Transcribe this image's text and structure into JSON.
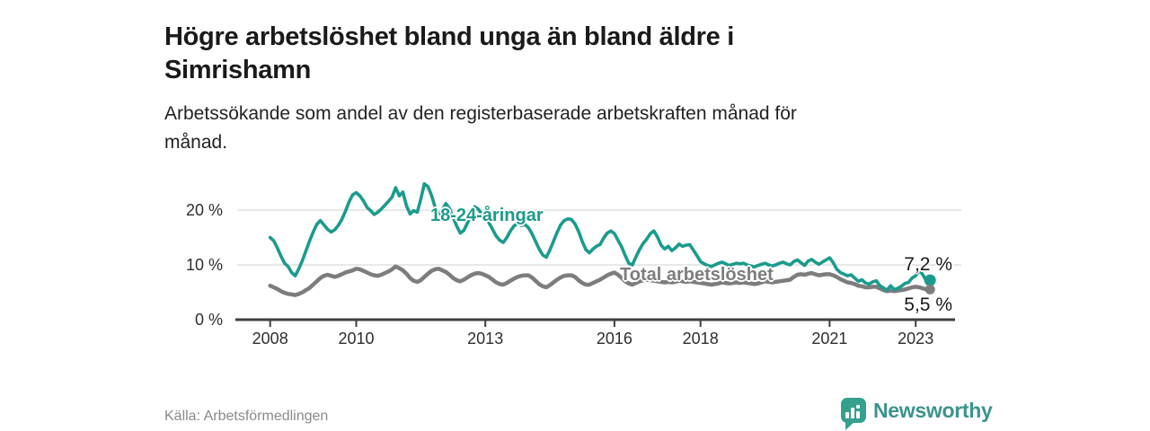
{
  "header": {
    "title_line1": "Högre arbetslöshet bland unga än bland äldre i",
    "title_line2": "Simrishamn",
    "subtitle_line1": "Arbetssökande som andel av den registerbaserade arbetskraften månad för",
    "subtitle_line2": "månad."
  },
  "chart_data": {
    "type": "line",
    "title": "Högre arbetslöshet bland unga än bland äldre i Simrishamn",
    "subtitle": "Arbetssökande som andel av den registerbaserade arbetskraften månad för månad.",
    "x_start": "2008-01",
    "x_end": "2023-05",
    "frequency": "monthly",
    "x_tick_years": [
      2008,
      2010,
      2013,
      2016,
      2018,
      2021,
      2023
    ],
    "x_tick_labels": [
      "2008",
      "2010",
      "2013",
      "2016",
      "2018",
      "2021",
      "2023"
    ],
    "y_ticks": [
      0,
      10,
      20
    ],
    "y_tick_labels": [
      "0 %",
      "10 %",
      "20 %"
    ],
    "ylim": [
      0,
      26
    ],
    "grid": "horizontal",
    "legend_position": "inline-labels",
    "series": [
      {
        "name": "18-24-åringar",
        "color": "#1b9b8c",
        "end_label": "7,2 %",
        "end_value": 7.2,
        "values": [
          15.0,
          14.4,
          13.1,
          11.6,
          10.3,
          9.7,
          8.6,
          8.0,
          9.3,
          10.8,
          12.6,
          14.4,
          16.0,
          17.4,
          18.1,
          17.3,
          16.5,
          16.0,
          16.4,
          17.2,
          18.3,
          19.8,
          21.5,
          22.8,
          23.2,
          22.6,
          21.7,
          20.5,
          19.9,
          19.2,
          19.6,
          20.2,
          20.9,
          21.6,
          22.4,
          24.1,
          22.6,
          23.3,
          20.8,
          19.3,
          19.9,
          19.6,
          22.0,
          24.8,
          24.3,
          22.7,
          20.5,
          19.3,
          20.1,
          21.2,
          20.3,
          18.7,
          17.1,
          15.8,
          16.3,
          17.6,
          19.1,
          20.6,
          20.2,
          19.3,
          18.5,
          17.7,
          16.5,
          15.3,
          14.5,
          14.1,
          15.0,
          16.2,
          17.1,
          17.6,
          17.2,
          17.4,
          16.8,
          15.7,
          14.3,
          12.9,
          11.8,
          11.4,
          12.7,
          14.3,
          15.9,
          17.3,
          18.1,
          18.4,
          18.3,
          17.5,
          16.1,
          14.3,
          12.8,
          12.2,
          12.9,
          13.4,
          13.7,
          14.9,
          15.8,
          16.2,
          15.7,
          14.5,
          13.3,
          11.7,
          10.3,
          10.0,
          11.5,
          12.8,
          13.9,
          14.7,
          15.7,
          16.2,
          15.1,
          13.6,
          12.9,
          13.4,
          12.6,
          13.1,
          13.8,
          13.4,
          13.6,
          13.7,
          12.7,
          11.7,
          10.6,
          10.2,
          9.9,
          9.7,
          10.0,
          10.3,
          10.5,
          10.2,
          9.9,
          10.1,
          10.3,
          10.2,
          10.3,
          10.0,
          9.8,
          9.6,
          9.9,
          10.1,
          10.3,
          10.0,
          9.8,
          10.0,
          10.3,
          10.5,
          10.2,
          10.0,
          10.6,
          10.9,
          10.4,
          9.9,
          10.7,
          11.0,
          10.5,
          10.1,
          10.5,
          10.9,
          11.3,
          10.4,
          9.2,
          8.6,
          8.3,
          8.0,
          8.2,
          7.6,
          7.0,
          7.3,
          6.7,
          6.5,
          6.9,
          7.1,
          6.2,
          5.8,
          5.4,
          6.2,
          5.5,
          5.7,
          6.1,
          6.6,
          6.8,
          7.6,
          8.0,
          9.0,
          8.2,
          7.0,
          7.2
        ]
      },
      {
        "name": "Total arbetslöshet",
        "color": "#7d7d7d",
        "end_label": "5,5 %",
        "end_value": 5.5,
        "values": [
          6.2,
          5.9,
          5.6,
          5.2,
          4.9,
          4.7,
          4.6,
          4.5,
          4.7,
          5.0,
          5.4,
          5.8,
          6.4,
          7.0,
          7.6,
          8.0,
          8.2,
          8.0,
          7.8,
          8.0,
          8.3,
          8.6,
          8.8,
          9.0,
          9.3,
          9.2,
          8.9,
          8.6,
          8.3,
          8.1,
          8.0,
          8.2,
          8.5,
          8.8,
          9.2,
          9.7,
          9.4,
          9.0,
          8.4,
          7.6,
          7.1,
          6.9,
          7.2,
          7.8,
          8.4,
          8.9,
          9.2,
          9.3,
          9.0,
          8.7,
          8.2,
          7.6,
          7.2,
          7.0,
          7.3,
          7.7,
          8.1,
          8.4,
          8.5,
          8.4,
          8.1,
          7.8,
          7.3,
          6.8,
          6.5,
          6.4,
          6.7,
          7.1,
          7.5,
          7.8,
          8.0,
          8.1,
          8.1,
          7.7,
          7.1,
          6.5,
          6.1,
          5.9,
          6.3,
          6.8,
          7.3,
          7.7,
          8.0,
          8.1,
          8.1,
          7.8,
          7.2,
          6.7,
          6.4,
          6.4,
          6.7,
          7.0,
          7.3,
          7.7,
          8.1,
          8.4,
          8.6,
          8.2,
          7.6,
          7.0,
          6.6,
          6.4,
          6.7,
          7.0,
          7.2,
          7.3,
          7.2,
          7.1,
          7.0,
          6.9,
          6.8,
          6.9,
          6.8,
          6.9,
          7.1,
          7.0,
          6.9,
          7.0,
          6.9,
          6.8,
          6.7,
          6.6,
          6.5,
          6.4,
          6.5,
          6.6,
          6.8,
          6.7,
          6.6,
          6.7,
          6.8,
          6.7,
          6.8,
          6.7,
          6.6,
          6.5,
          6.6,
          6.8,
          7.0,
          6.9,
          6.8,
          6.9,
          7.0,
          7.1,
          7.2,
          7.3,
          7.8,
          8.2,
          8.3,
          8.2,
          8.4,
          8.5,
          8.3,
          8.1,
          8.2,
          8.3,
          8.3,
          8.1,
          7.8,
          7.4,
          7.1,
          6.8,
          6.7,
          6.5,
          6.2,
          6.1,
          5.9,
          5.9,
          6.0,
          6.0,
          5.7,
          5.4,
          5.2,
          5.3,
          5.2,
          5.3,
          5.4,
          5.5,
          5.7,
          5.9,
          6.0,
          5.9,
          5.7,
          5.5,
          5.5
        ]
      }
    ],
    "colors": {
      "young": "#1b9b8c",
      "total": "#7d7d7d",
      "grid": "#e0e0e0",
      "axis": "#3f3f3f"
    }
  },
  "footer": {
    "source": "Källa: Arbetsförmedlingen"
  },
  "branding": {
    "name": "Newsworthy",
    "color": "#35a08e",
    "icon": "newsworthy-chart-bubble-icon"
  }
}
